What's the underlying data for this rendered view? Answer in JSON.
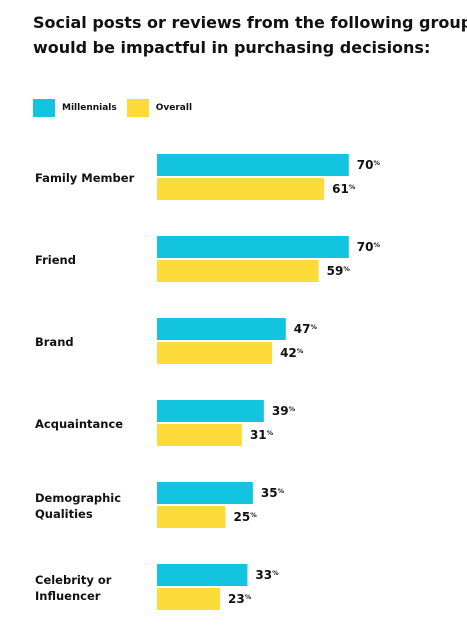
{
  "title_lines": [
    "Social posts or reviews from the following groups",
    "would be impactful in purchasing decisions:"
  ],
  "colors": {
    "millennials": "#12c4e0",
    "overall": "#fddb3a",
    "text": "#111111"
  },
  "legend": [
    {
      "name": "Millennials",
      "color": "#12c4e0"
    },
    {
      "name": "Overall",
      "color": "#fddb3a"
    }
  ],
  "chart_data": {
    "type": "bar",
    "orientation": "horizontal",
    "title": "Social posts or reviews from the following groups would be impactful in purchasing decisions:",
    "categories": [
      [
        "Family Member"
      ],
      [
        "Friend"
      ],
      [
        "Brand"
      ],
      [
        "Acquaintance"
      ],
      [
        "Demographic",
        "Qualities"
      ],
      [
        "Celebrity or",
        "Influencer"
      ]
    ],
    "series": [
      {
        "name": "Millennials",
        "color": "#12c4e0",
        "values": [
          70,
          70,
          47,
          39,
          35,
          33
        ]
      },
      {
        "name": "Overall",
        "color": "#fddb3a",
        "values": [
          61,
          59,
          42,
          31,
          25,
          23
        ]
      }
    ],
    "value_suffix": "%",
    "xlim": [
      0,
      100
    ],
    "grid": false,
    "legend_position": "top-left"
  }
}
